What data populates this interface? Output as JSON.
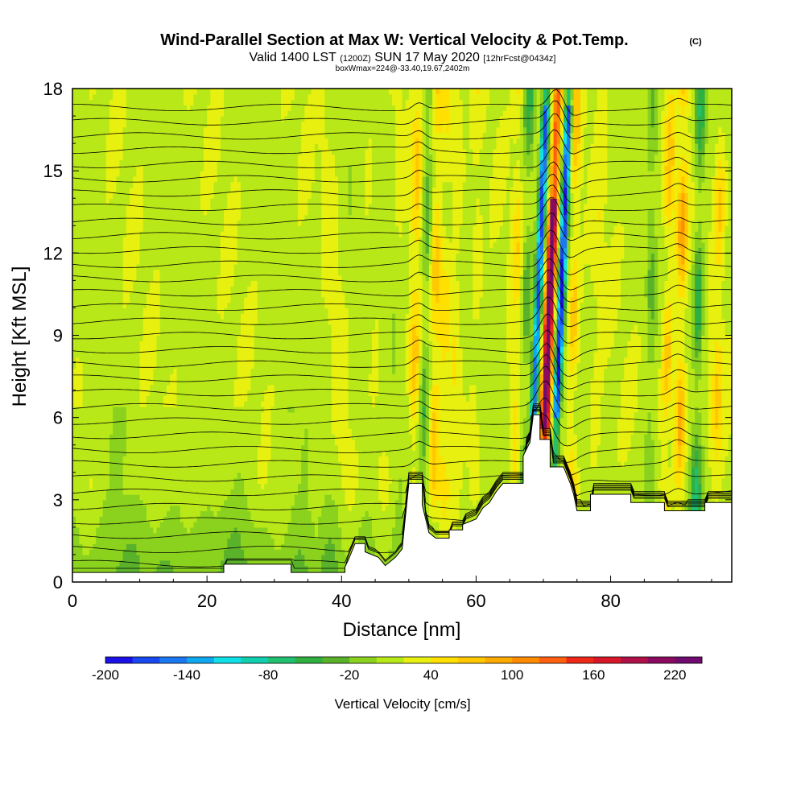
{
  "chart_data": {
    "type": "heatmap",
    "title": "Wind-Parallel Section at Max W: Vertical Velocity & Pot.Temp.",
    "title_mark": "(C)",
    "subtitle_parts": {
      "valid": "Valid 1400 LST",
      "utc": "(1200Z)",
      "date": "SUN 17 May 2020",
      "forecast": "[12hrFcst@0434z]"
    },
    "box_info": "boxWmax=224@-33.40,19.67,2402m",
    "xlabel": "Distance [nm]",
    "ylabel": "Height [Kft MSL]",
    "xlim": [
      0,
      98
    ],
    "ylim": [
      0,
      18
    ],
    "x_ticks": [
      0,
      20,
      40,
      60,
      80
    ],
    "y_ticks": [
      0,
      3,
      6,
      9,
      12,
      15,
      18
    ],
    "colorbar": {
      "label": "Vertical Velocity [cm/s]",
      "ticks": [
        "-200",
        "-140",
        "-80",
        "-20",
        "40",
        "100",
        "160",
        "220"
      ],
      "min": -200,
      "max": 240,
      "step": 20,
      "colors": [
        "#1a10e8",
        "#1848f0",
        "#1a78f2",
        "#10a8f0",
        "#10e0e8",
        "#10d0b0",
        "#20c070",
        "#30b040",
        "#5ab22a",
        "#8ad21e",
        "#b8e818",
        "#e8f010",
        "#ffe000",
        "#ffc800",
        "#ffaa00",
        "#ff8c00",
        "#ff6010",
        "#f02818",
        "#d81828",
        "#b01048",
        "#8a0a60",
        "#700a70"
      ]
    },
    "vertical_velocity_features": [
      {
        "x_nm": 51,
        "w_cm_s": 60
      },
      {
        "x_nm": 52.5,
        "w_cm_s": -60
      },
      {
        "x_nm": 54,
        "w_cm_s": 60
      },
      {
        "x_nm": 55.5,
        "w_cm_s": 30
      },
      {
        "x_nm": 57,
        "w_cm_s": 30
      },
      {
        "x_nm": 60,
        "w_cm_s": 20
      },
      {
        "x_nm": 66,
        "w_cm_s": 40
      },
      {
        "x_nm": 67.5,
        "w_cm_s": -60
      },
      {
        "x_nm": 69.2,
        "w_cm_s": -180
      },
      {
        "x_nm": 70.9,
        "w_cm_s": 224
      },
      {
        "x_nm": 72.6,
        "w_cm_s": -200
      },
      {
        "x_nm": 74.5,
        "w_cm_s": 60
      },
      {
        "x_nm": 78,
        "w_cm_s": 20
      },
      {
        "x_nm": 86,
        "w_cm_s": -40
      },
      {
        "x_nm": 88.5,
        "w_cm_s": 60
      },
      {
        "x_nm": 90.5,
        "w_cm_s": 80
      },
      {
        "x_nm": 93,
        "w_cm_s": -80
      },
      {
        "x_nm": 96,
        "w_cm_s": 50
      }
    ],
    "terrain_kft": [
      {
        "x": 0,
        "h": 0.35
      },
      {
        "x": 22.5,
        "h": 0.35
      },
      {
        "x": 22.5,
        "h": 0.65
      },
      {
        "x": 32.5,
        "h": 0.65
      },
      {
        "x": 32.5,
        "h": 0.35
      },
      {
        "x": 40.5,
        "h": 0.35
      },
      {
        "x": 40.5,
        "h": 0.55
      },
      {
        "x": 41,
        "h": 0.8
      },
      {
        "x": 41.5,
        "h": 1.1
      },
      {
        "x": 42,
        "h": 1.4
      },
      {
        "x": 43.5,
        "h": 1.4
      },
      {
        "x": 43.5,
        "h": 1.1
      },
      {
        "x": 45.5,
        "h": 0.9
      },
      {
        "x": 46.5,
        "h": 0.6
      },
      {
        "x": 48,
        "h": 0.9
      },
      {
        "x": 49,
        "h": 1.2
      },
      {
        "x": 50,
        "h": 3.6
      },
      {
        "x": 52,
        "h": 3.6
      },
      {
        "x": 52,
        "h": 2.8
      },
      {
        "x": 53,
        "h": 1.8
      },
      {
        "x": 54,
        "h": 1.6
      },
      {
        "x": 56,
        "h": 1.6
      },
      {
        "x": 56,
        "h": 1.9
      },
      {
        "x": 58,
        "h": 1.9
      },
      {
        "x": 58,
        "h": 2.1
      },
      {
        "x": 60,
        "h": 2.3
      },
      {
        "x": 61,
        "h": 2.7
      },
      {
        "x": 62,
        "h": 2.9
      },
      {
        "x": 63,
        "h": 3.3
      },
      {
        "x": 64,
        "h": 3.6
      },
      {
        "x": 67,
        "h": 3.6
      },
      {
        "x": 67,
        "h": 4.6
      },
      {
        "x": 68,
        "h": 5.1
      },
      {
        "x": 68.5,
        "h": 6.1
      },
      {
        "x": 69.5,
        "h": 6.1
      },
      {
        "x": 69.5,
        "h": 5.2
      },
      {
        "x": 71,
        "h": 5.2
      },
      {
        "x": 71,
        "h": 4.2
      },
      {
        "x": 73,
        "h": 4.2
      },
      {
        "x": 74,
        "h": 3.6
      },
      {
        "x": 74.5,
        "h": 3.2
      },
      {
        "x": 75,
        "h": 2.6
      },
      {
        "x": 77,
        "h": 2.6
      },
      {
        "x": 77,
        "h": 3.2
      },
      {
        "x": 83,
        "h": 3.2
      },
      {
        "x": 83,
        "h": 2.9
      },
      {
        "x": 88,
        "h": 2.9
      },
      {
        "x": 88,
        "h": 2.6
      },
      {
        "x": 94,
        "h": 2.6
      },
      {
        "x": 94,
        "h": 2.9
      },
      {
        "x": 98,
        "h": 2.9
      }
    ]
  }
}
